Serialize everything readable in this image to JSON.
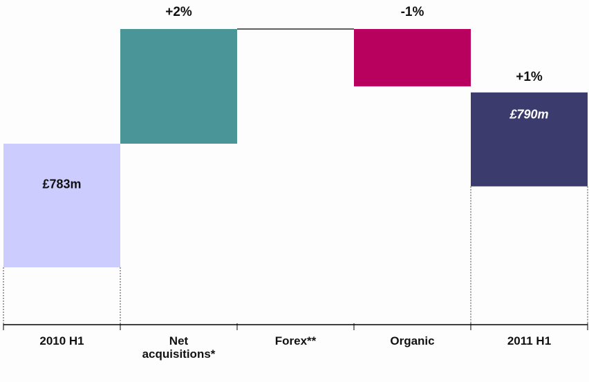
{
  "chart_data": {
    "type": "waterfall",
    "categories": [
      "2010 H1",
      "Net acquisitions*",
      "Forex**",
      "Organic",
      "2011 H1"
    ],
    "values": [
      783,
      2,
      0,
      -1,
      790
    ],
    "value_labels": [
      "£783m",
      "+2%",
      null,
      "-1%",
      "£790m"
    ],
    "kinds": [
      "total",
      "step",
      "step",
      "step",
      "total"
    ],
    "colors": [
      "#ccccff",
      "#4a9597",
      "#4a9597",
      "#b8005f",
      "#3b3b6e"
    ],
    "value_label_colors": [
      "#111111",
      "#111111",
      "#111111",
      "#111111",
      "#ffffff"
    ],
    "change_label": "+1%"
  }
}
